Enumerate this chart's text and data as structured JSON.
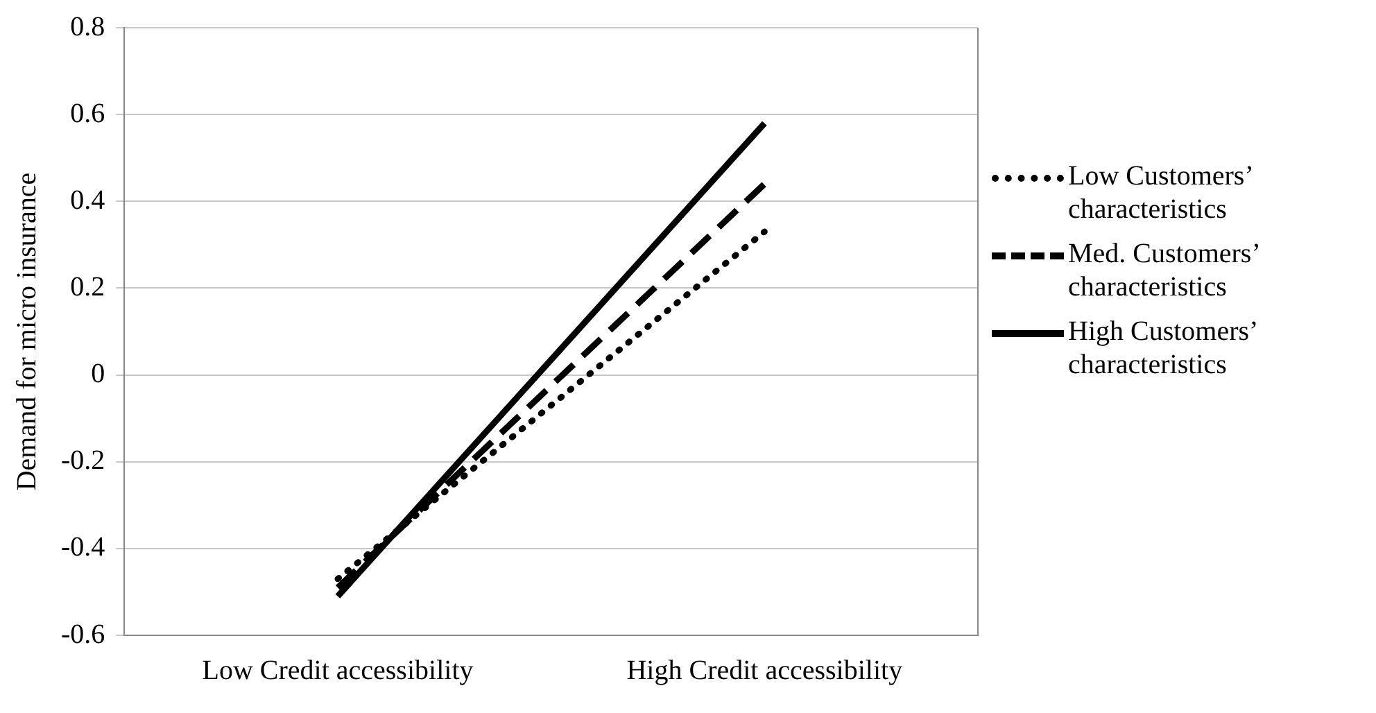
{
  "chart_data": {
    "type": "line",
    "ylabel": "Demand for micro insurance",
    "categories": [
      "Low Credit accessibility",
      "High Credit accessibility"
    ],
    "series": [
      {
        "name": "Low Customers’ characteristics",
        "color": "#000000",
        "line_style": "dotted",
        "values": [
          -0.47,
          0.33
        ]
      },
      {
        "name": "Med. Customers’ characteristics",
        "color": "#000000",
        "line_style": "dashed",
        "values": [
          -0.49,
          0.44
        ]
      },
      {
        "name": "High Customers’ characteristics",
        "color": "#000000",
        "line_style": "solid",
        "values": [
          -0.51,
          0.58
        ]
      }
    ],
    "ylim": [
      -0.6,
      0.8
    ],
    "yticks": [
      -0.6,
      -0.4,
      -0.2,
      0,
      0.2,
      0.4,
      0.6,
      0.8
    ],
    "grid": "y",
    "legend": "right",
    "marker": "none"
  }
}
